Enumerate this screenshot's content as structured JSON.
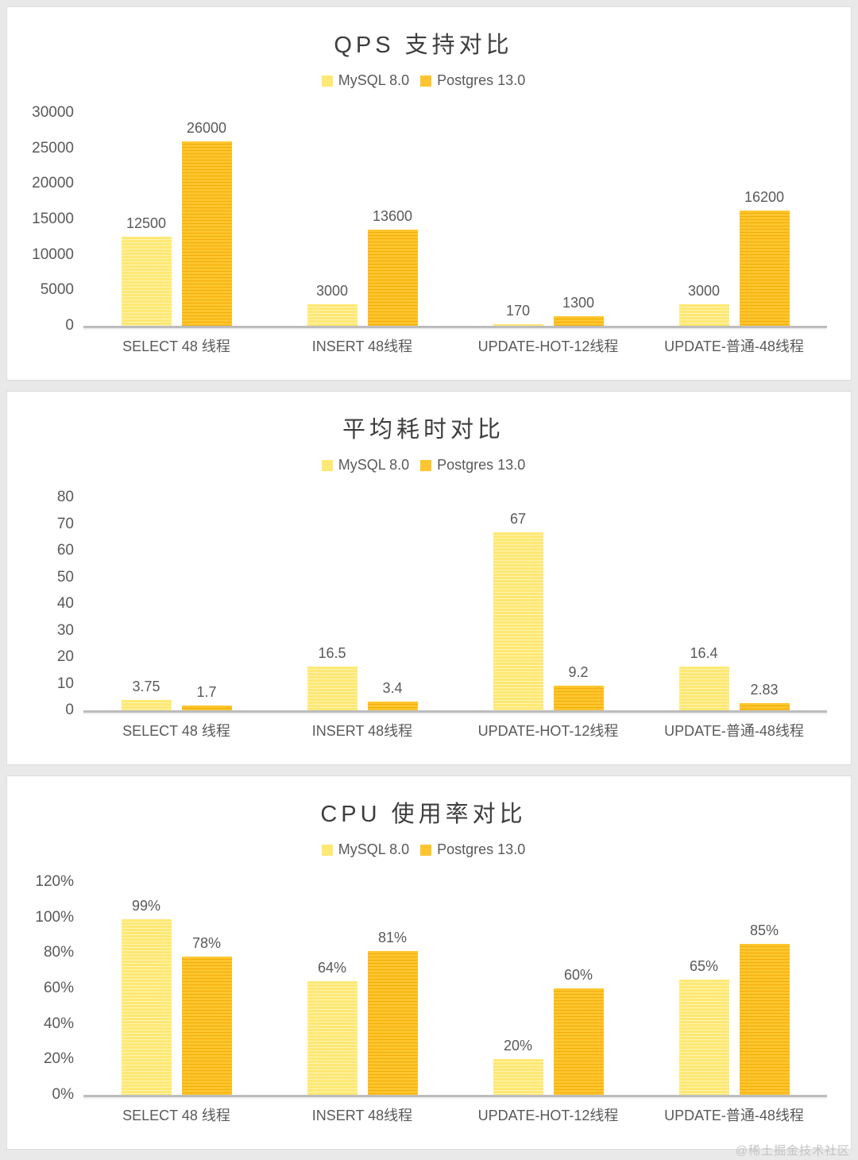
{
  "watermark": "@稀土掘金技术社区",
  "chart_data": [
    {
      "type": "bar",
      "title": "QPS 支持对比",
      "xlabel": "",
      "ylabel": "",
      "ylim": [
        0,
        30000
      ],
      "ytick_step": 5000,
      "value_suffix": "",
      "grid": false,
      "legend_position": "top",
      "categories": [
        "SELECT 48 线程",
        "INSERT 48线程",
        "UPDATE-HOT-12线程",
        "UPDATE-普通-48线程"
      ],
      "series": [
        {
          "name": "MySQL 8.0",
          "values": [
            12500,
            3000,
            170,
            3000
          ],
          "color": "#ffe873",
          "stripe": "#fff4b3"
        },
        {
          "name": "Postgres 13.0",
          "values": [
            26000,
            13600,
            1300,
            16200
          ],
          "color": "#ffc52e",
          "stripe": "#f2ad07"
        }
      ]
    },
    {
      "type": "bar",
      "title": "平均耗时对比",
      "xlabel": "",
      "ylabel": "",
      "ylim": [
        0,
        80
      ],
      "ytick_step": 10,
      "value_suffix": "",
      "grid": false,
      "legend_position": "top",
      "categories": [
        "SELECT 48 线程",
        "INSERT 48线程",
        "UPDATE-HOT-12线程",
        "UPDATE-普通-48线程"
      ],
      "series": [
        {
          "name": "MySQL 8.0",
          "values": [
            3.75,
            16.5,
            67,
            16.4
          ],
          "color": "#ffe873",
          "stripe": "#fff4b3"
        },
        {
          "name": "Postgres 13.0",
          "values": [
            1.7,
            3.4,
            9.2,
            2.83
          ],
          "color": "#ffc52e",
          "stripe": "#f2ad07"
        }
      ]
    },
    {
      "type": "bar",
      "title": "CPU 使用率对比",
      "xlabel": "",
      "ylabel": "",
      "ylim": [
        0,
        120
      ],
      "ytick_step": 20,
      "value_suffix": "%",
      "grid": false,
      "legend_position": "top",
      "categories": [
        "SELECT 48 线程",
        "INSERT 48线程",
        "UPDATE-HOT-12线程",
        "UPDATE-普通-48线程"
      ],
      "series": [
        {
          "name": "MySQL 8.0",
          "values": [
            99,
            64,
            20,
            65
          ],
          "color": "#ffe873",
          "stripe": "#fff4b3"
        },
        {
          "name": "Postgres 13.0",
          "values": [
            78,
            81,
            60,
            85
          ],
          "color": "#ffc52e",
          "stripe": "#f2ad07"
        }
      ]
    }
  ]
}
